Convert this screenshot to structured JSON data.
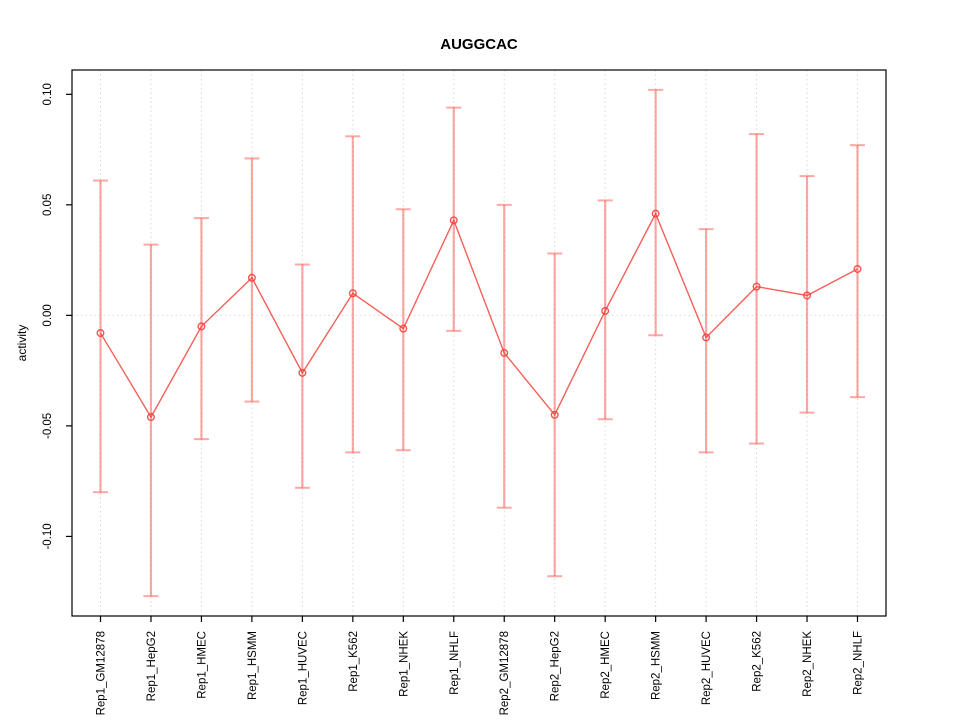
{
  "chart_data": {
    "type": "line",
    "title": "AUGGCAC",
    "xlabel": "",
    "ylabel": "activity",
    "categories": [
      "Rep1_GM12878",
      "Rep1_HepG2",
      "Rep1_HMEC",
      "Rep1_HSMM",
      "Rep1_HUVEC",
      "Rep1_K562",
      "Rep1_NHEK",
      "Rep1_NHLF",
      "Rep2_GM12878",
      "Rep2_HepG2",
      "Rep2_HMEC",
      "Rep2_HSMM",
      "Rep2_HUVEC",
      "Rep2_K562",
      "Rep2_NHEK",
      "Rep2_NHLF"
    ],
    "series": [
      {
        "name": "activity",
        "values": [
          -0.008,
          -0.046,
          -0.005,
          0.017,
          -0.026,
          0.01,
          -0.006,
          0.043,
          -0.017,
          -0.045,
          0.002,
          0.046,
          -0.01,
          0.013,
          0.009,
          0.021
        ],
        "error_high": [
          0.061,
          0.032,
          0.044,
          0.071,
          0.023,
          0.081,
          0.048,
          0.094,
          0.05,
          0.028,
          0.052,
          0.102,
          0.039,
          0.082,
          0.063,
          0.077
        ],
        "error_low": [
          -0.08,
          -0.127,
          -0.056,
          -0.039,
          -0.078,
          -0.062,
          -0.061,
          -0.007,
          -0.087,
          -0.118,
          -0.047,
          -0.009,
          -0.062,
          -0.058,
          -0.044,
          -0.037
        ]
      }
    ],
    "yticks": [
      -0.1,
      -0.05,
      0.0,
      0.05,
      0.1
    ],
    "ytick_labels": [
      "-0.10",
      "-0.05",
      "0.00",
      "0.05",
      "0.10"
    ],
    "ylim": [
      -0.136,
      0.111
    ],
    "legend": "none",
    "grid": {
      "vertical_per_category": true,
      "zero_line_dotted": true
    },
    "style": {
      "point_marker": "open-circle",
      "colors": {
        "line": "rgba(244,67,60,0.85)",
        "point": "rgba(244,67,60,0.9)",
        "error_bar": "rgba(250,96,90,0.55)",
        "grid": "#d9d9d9",
        "axis": "#000000"
      }
    }
  }
}
